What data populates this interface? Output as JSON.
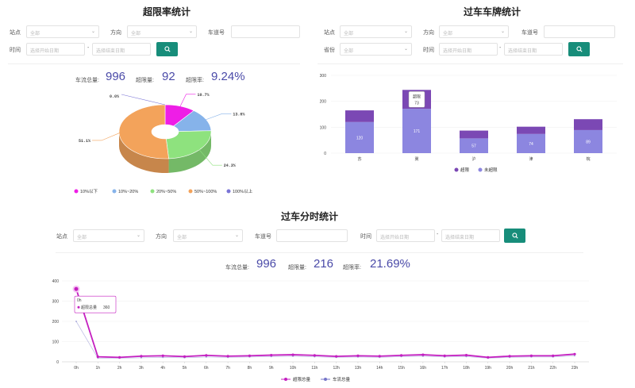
{
  "panels": {
    "over_limit": {
      "title": "超限率统计",
      "filters": {
        "station_label": "站点",
        "station_value": "全部",
        "direction_label": "方向",
        "direction_value": "全部",
        "lane_label": "车道号",
        "lane_value": "",
        "time_label": "时间",
        "start_placeholder": "选择开始日期",
        "end_placeholder": "选择结束日期",
        "range_sep": "-"
      },
      "stats": {
        "total_label": "车流总量:",
        "total_value": "996",
        "over_label": "超限量:",
        "over_value": "92",
        "rate_label": "超限率:",
        "rate_value": "9.24%"
      }
    },
    "plate": {
      "title": "过车车牌统计",
      "filters": {
        "station_label": "站点",
        "station_value": "全部",
        "direction_label": "方向",
        "direction_value": "全部",
        "lane_label": "车道号",
        "lane_value": "",
        "province_label": "省份",
        "province_value": "全部",
        "time_label": "时间",
        "start_placeholder": "选择开始日期",
        "end_placeholder": "选择结束日期",
        "range_sep": "-"
      }
    },
    "hourly": {
      "title": "过车分时统计",
      "filters": {
        "station_label": "站点",
        "station_value": "全部",
        "direction_label": "方向",
        "direction_value": "全部",
        "lane_label": "车道号",
        "lane_value": "",
        "time_label": "时间",
        "start_placeholder": "选择开始日期",
        "end_placeholder": "选择结束日期",
        "range_sep": "-"
      },
      "stats": {
        "total_label": "车流总量:",
        "total_value": "996",
        "over_label": "超限量:",
        "over_value": "216",
        "rate_label": "超限率:",
        "rate_value": "21.69%"
      }
    }
  },
  "colors": {
    "accent_button": "#178d7a",
    "stat_value": "#4a4aa8",
    "pie": [
      "#ee1ee6",
      "#86b3ea",
      "#8ee27e",
      "#f3a35b",
      "#7a74d6"
    ],
    "bar_over": "#7b48b4",
    "bar_not_over": "#8c86e0",
    "line_over": "#c41fc0",
    "line_total": "#7575c8"
  },
  "icons": {
    "search": "search-icon",
    "dropdown": "chevron-down-icon"
  },
  "chart_data": [
    {
      "type": "pie",
      "title": "",
      "categories": [
        "10%以下",
        "10%~20%",
        "20%~50%",
        "50%~100%",
        "100%以上"
      ],
      "values": [
        10.7,
        13.6,
        24.3,
        51.1,
        0.0
      ],
      "slice_labels": [
        "10.7%",
        "13.6%",
        "24.3%",
        "51.1%",
        "0.0%"
      ],
      "legend_position": "bottom"
    },
    {
      "type": "bar",
      "stacked": true,
      "categories": [
        "苏",
        "冀",
        "沪",
        "津",
        "皖"
      ],
      "series": [
        {
          "name": "超限",
          "values": [
            45,
            73,
            30,
            28,
            42
          ]
        },
        {
          "name": "未超限",
          "values": [
            120,
            171,
            57,
            74,
            89
          ]
        }
      ],
      "value_labels_not_over": [
        "120",
        "171",
        "57",
        "74",
        "89"
      ],
      "ylim": [
        0,
        300
      ],
      "yticks": [
        "0",
        "100",
        "200",
        "300"
      ],
      "tooltip": {
        "title": "超限",
        "value": "73"
      },
      "legend_position": "bottom"
    },
    {
      "type": "line",
      "x": [
        "0h",
        "1h",
        "2h",
        "3h",
        "4h",
        "5h",
        "6h",
        "7h",
        "8h",
        "9h",
        "10h",
        "11h",
        "12h",
        "13h",
        "14h",
        "15h",
        "16h",
        "17h",
        "18h",
        "19h",
        "20h",
        "21h",
        "22h",
        "23h"
      ],
      "series": [
        {
          "name": "超限总量",
          "values": [
            360,
            25,
            22,
            28,
            30,
            26,
            32,
            28,
            30,
            33,
            35,
            32,
            27,
            30,
            28,
            32,
            35,
            30,
            33,
            22,
            28,
            30,
            30,
            38
          ]
        },
        {
          "name": "车流总量",
          "values": [
            200,
            18,
            18,
            20,
            22,
            20,
            24,
            22,
            24,
            26,
            28,
            25,
            22,
            24,
            22,
            26,
            28,
            24,
            26,
            18,
            22,
            24,
            24,
            30
          ]
        }
      ],
      "ylim": [
        0,
        400
      ],
      "yticks": [
        "0",
        "100",
        "200",
        "300",
        "400"
      ],
      "tooltip": {
        "title": "0h",
        "label": "超限总量",
        "value": "360"
      },
      "legend_position": "bottom"
    }
  ]
}
